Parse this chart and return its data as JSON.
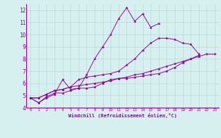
{
  "xlabel": "Windchill (Refroidissement éolien,°C)",
  "background_color": "#d5f0ee",
  "grid_color": "#b8d8d8",
  "line_color": "#990099",
  "xlim": [
    -0.5,
    23.5
  ],
  "ylim": [
    4,
    12.5
  ],
  "yticks": [
    4,
    5,
    6,
    7,
    8,
    9,
    10,
    11,
    12
  ],
  "xticks": [
    0,
    1,
    2,
    3,
    4,
    5,
    6,
    7,
    8,
    9,
    10,
    11,
    12,
    13,
    14,
    15,
    16,
    17,
    18,
    19,
    20,
    21,
    22,
    23
  ],
  "series": [
    [
      4.8,
      4.4,
      4.8,
      5.1,
      6.3,
      5.5,
      5.6,
      6.7,
      8.0,
      9.0,
      10.0,
      11.3,
      12.2,
      11.1,
      11.7,
      10.6,
      10.9,
      null,
      null,
      null,
      null,
      null,
      null,
      null
    ],
    [
      4.8,
      4.4,
      4.9,
      5.2,
      5.2,
      5.4,
      5.6,
      5.6,
      5.7,
      6.0,
      6.3,
      6.4,
      6.4,
      6.5,
      6.6,
      6.7,
      6.8,
      7.0,
      7.3,
      7.7,
      8.0,
      8.3,
      null,
      null
    ],
    [
      4.8,
      4.8,
      5.1,
      5.4,
      5.5,
      5.7,
      6.3,
      6.5,
      6.6,
      6.7,
      6.8,
      7.0,
      7.5,
      8.0,
      8.7,
      9.3,
      9.7,
      9.7,
      9.6,
      9.3,
      9.2,
      8.4,
      null,
      null
    ],
    [
      4.8,
      4.8,
      5.1,
      5.4,
      5.5,
      5.7,
      5.8,
      5.9,
      6.0,
      6.1,
      6.2,
      6.4,
      6.5,
      6.7,
      6.8,
      7.0,
      7.2,
      7.4,
      7.6,
      7.8,
      8.0,
      8.2,
      8.4,
      8.4
    ]
  ]
}
